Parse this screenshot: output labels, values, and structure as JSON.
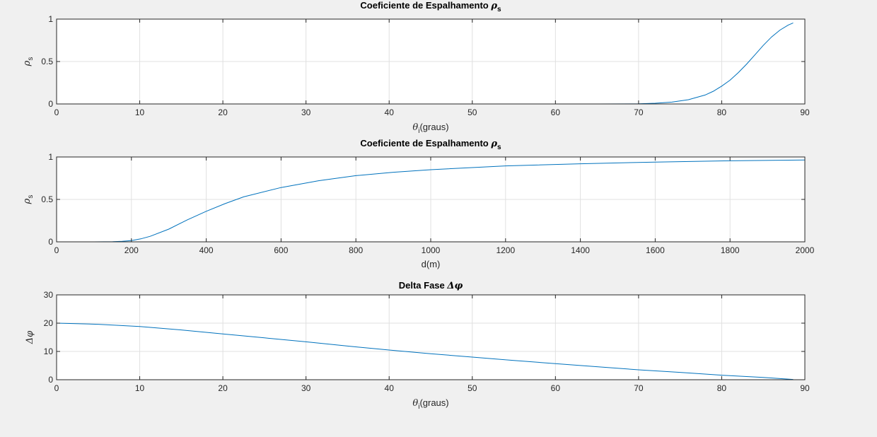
{
  "figure": {
    "background": "#f0f0f0",
    "axes_background": "#ffffff",
    "line_color": "#0072bd",
    "grid_color": "#e0e0e0"
  },
  "chart_data": [
    {
      "type": "line",
      "title": {
        "text": "Coeficiente de Espalhamento ",
        "symbol": "ρ",
        "subscript": "s"
      },
      "xlabel": {
        "symbol": "θ",
        "subscript": "i",
        "text": "(graus)"
      },
      "ylabel": {
        "symbol": "ρ",
        "subscript": "s"
      },
      "xlim": [
        0,
        90
      ],
      "ylim": [
        0,
        1
      ],
      "xticks": [
        0,
        10,
        20,
        30,
        40,
        50,
        60,
        70,
        80,
        90
      ],
      "yticks": [
        0,
        0.5,
        1
      ],
      "grid": true,
      "series": [
        {
          "x": [
            0,
            10,
            20,
            30,
            40,
            50,
            60,
            65,
            70,
            72,
            74,
            76,
            78,
            79,
            80,
            81,
            82,
            83,
            84,
            85,
            86,
            87,
            88,
            88.6
          ],
          "y": [
            0,
            0,
            0,
            0,
            0,
            0,
            0,
            0,
            0.002,
            0.008,
            0.022,
            0.05,
            0.105,
            0.15,
            0.21,
            0.28,
            0.37,
            0.47,
            0.58,
            0.69,
            0.79,
            0.87,
            0.93,
            0.955
          ]
        }
      ]
    },
    {
      "type": "line",
      "title": {
        "text": "Coeficiente de Espalhamento ",
        "symbol": "ρ",
        "subscript": "s"
      },
      "xlabel": {
        "text": "d(m)"
      },
      "ylabel": {
        "symbol": "ρ",
        "subscript": "s"
      },
      "xlim": [
        0,
        2000
      ],
      "ylim": [
        0,
        1
      ],
      "xticks": [
        0,
        200,
        400,
        600,
        800,
        1000,
        1200,
        1400,
        1600,
        1800,
        2000
      ],
      "yticks": [
        0,
        0.5,
        1
      ],
      "grid": true,
      "series": [
        {
          "x": [
            0,
            100,
            150,
            175,
            200,
            225,
            250,
            300,
            350,
            400,
            450,
            500,
            600,
            700,
            800,
            900,
            1000,
            1200,
            1400,
            1600,
            1800,
            2000
          ],
          "y": [
            0,
            0,
            0.002,
            0.006,
            0.015,
            0.035,
            0.065,
            0.15,
            0.26,
            0.36,
            0.45,
            0.53,
            0.64,
            0.72,
            0.78,
            0.82,
            0.85,
            0.895,
            0.92,
            0.94,
            0.955,
            0.965
          ]
        }
      ]
    },
    {
      "type": "line",
      "title": {
        "text": "Delta Fase ",
        "symbol": "Δφ"
      },
      "xlabel": {
        "symbol": "θ",
        "subscript": "i",
        "text": "(graus)"
      },
      "ylabel": {
        "symbol": "Δφ"
      },
      "xlim": [
        0,
        90
      ],
      "ylim": [
        0,
        30
      ],
      "xticks": [
        0,
        10,
        20,
        30,
        40,
        50,
        60,
        70,
        80,
        90
      ],
      "yticks": [
        0,
        10,
        20,
        30
      ],
      "grid": true,
      "series": [
        {
          "x": [
            0,
            5,
            10,
            15,
            20,
            25,
            30,
            35,
            40,
            45,
            50,
            55,
            60,
            65,
            70,
            75,
            80,
            85,
            88.6
          ],
          "y": [
            20.0,
            19.6,
            18.8,
            17.6,
            16.2,
            14.8,
            13.4,
            11.9,
            10.5,
            9.2,
            8.0,
            6.8,
            5.7,
            4.6,
            3.5,
            2.6,
            1.6,
            0.8,
            0.1
          ]
        }
      ]
    }
  ]
}
